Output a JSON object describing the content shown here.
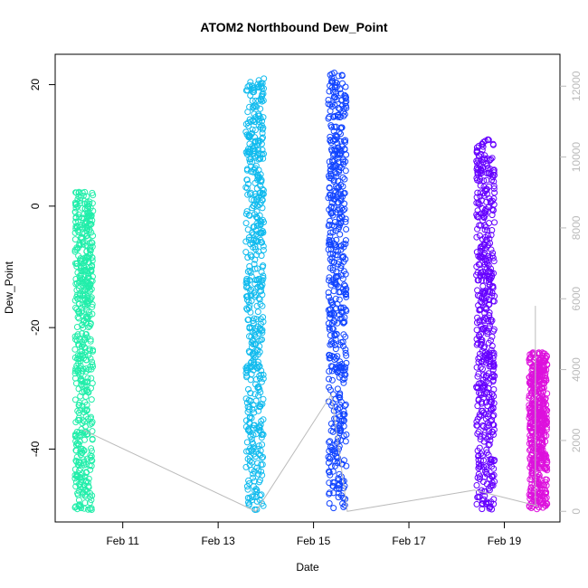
{
  "chart_data": {
    "type": "scatter",
    "title": "ATOM2 Northbound Dew_Point",
    "xlabel": "Date",
    "ylabel": "Dew_Point",
    "x_ticks": [
      "Feb 11",
      "Feb 13",
      "Feb 15",
      "Feb 17",
      "Feb 19"
    ],
    "y_ticks": [
      "-40",
      "-20",
      "0",
      "20"
    ],
    "y2_ticks": [
      "0",
      "2000",
      "4000",
      "6000",
      "8000",
      "10000",
      "12000"
    ],
    "xlim": [
      "2010-02-09T14:00",
      "2010-02-20T04:00"
    ],
    "ylim": [
      -52,
      25
    ],
    "y2lim": [
      -300,
      12900
    ],
    "colors": {
      "grey_line": "#bbbbbb",
      "axis": "#000000",
      "secondary_axis": "#bbbbbb"
    },
    "clusters": [
      {
        "date": "2010-02-10T04:30",
        "color": "#22eeaa",
        "dew_min": -50,
        "dew_max": 2.5
      },
      {
        "date": "2010-02-13T18:30",
        "color": "#11bbee",
        "dew_min": -50,
        "dew_max": 21
      },
      {
        "date": "2010-02-15T12:00",
        "color": "#1144ff",
        "dew_min": -50,
        "dew_max": 22
      },
      {
        "date": "2010-02-18T14:30",
        "color": "#6600ff",
        "dew_min": -50,
        "dew_max": 11
      },
      {
        "date": "2010-02-19T17:00",
        "color": "#dd11dd",
        "dew_min": -50,
        "dew_max": -24
      }
    ],
    "altitude_connector": [
      {
        "date": "2010-02-10T04:00",
        "value": 2300
      },
      {
        "date": "2010-02-13T19:00",
        "value": 0
      },
      {
        "date": "2010-02-15T09:00",
        "value": 3300
      },
      {
        "date": "2010-02-15T17:00",
        "value": 0
      },
      {
        "date": "2010-02-18T09:00",
        "value": 600
      },
      {
        "date": "2010-02-19T17:00",
        "value": 150
      }
    ]
  }
}
